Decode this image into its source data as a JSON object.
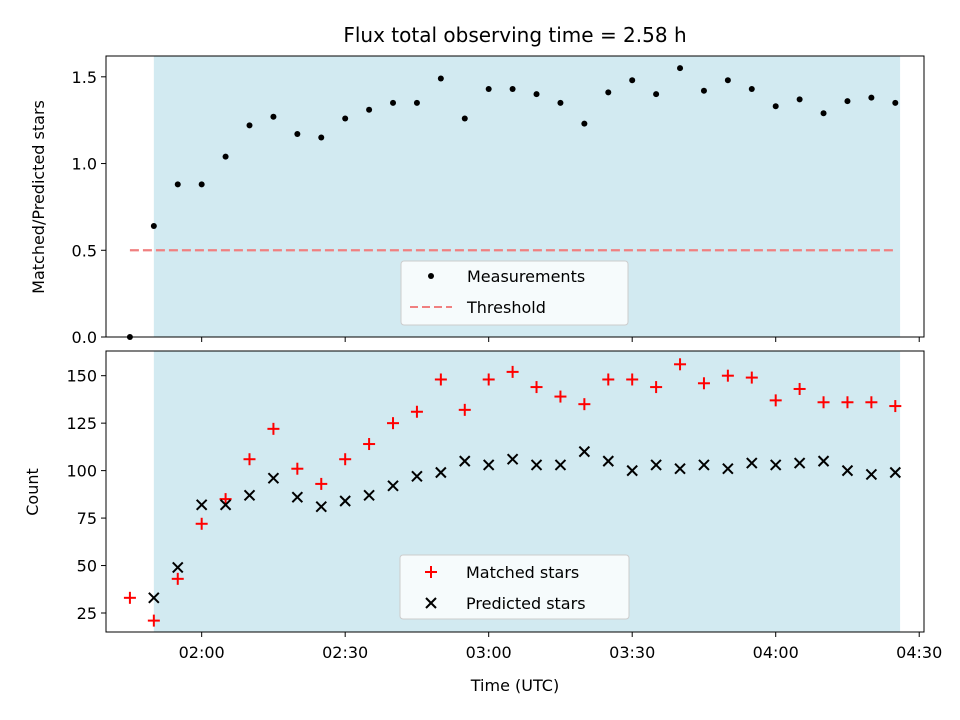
{
  "chart_data": [
    {
      "type": "scatter",
      "title": "Flux total observing time = 2.58 h",
      "xlabel": "",
      "ylabel": "Matched/Predicted stars",
      "ylim": [
        0,
        1.62
      ],
      "xlim": [
        "01:40",
        "04:31"
      ],
      "yticks": [
        0.0,
        0.5,
        1.0,
        1.5
      ],
      "ytick_labels": [
        "0.0",
        "0.5",
        "1.0",
        "1.5"
      ],
      "shaded_region": {
        "from": "01:50",
        "to": "04:26",
        "color": "#add8e6"
      },
      "legend_position": "lower center",
      "series": [
        {
          "name": "Measurements",
          "marker": "dot",
          "color": "#000000",
          "x": [
            "01:45",
            "01:50",
            "01:55",
            "02:00",
            "02:05",
            "02:10",
            "02:15",
            "02:20",
            "02:25",
            "02:30",
            "02:35",
            "02:40",
            "02:45",
            "02:50",
            "02:55",
            "03:00",
            "03:05",
            "03:10",
            "03:15",
            "03:20",
            "03:25",
            "03:30",
            "03:35",
            "03:40",
            "03:45",
            "03:50",
            "03:55",
            "04:00",
            "04:05",
            "04:10",
            "04:15",
            "04:20",
            "04:25"
          ],
          "y": [
            0.0,
            0.64,
            0.88,
            0.88,
            1.04,
            1.22,
            1.27,
            1.17,
            1.15,
            1.26,
            1.31,
            1.35,
            1.35,
            1.49,
            1.26,
            1.43,
            1.43,
            1.4,
            1.35,
            1.23,
            1.41,
            1.48,
            1.4,
            1.55,
            1.42,
            1.48,
            1.43,
            1.33,
            1.37,
            1.29,
            1.36,
            1.38,
            1.35
          ]
        },
        {
          "name": "Threshold",
          "marker": "dashed-line",
          "color": "#f08080",
          "x": [
            "01:45",
            "04:25"
          ],
          "y": [
            0.5,
            0.5
          ]
        }
      ]
    },
    {
      "type": "scatter",
      "title": "",
      "xlabel": "Time (UTC)",
      "ylabel": "Count",
      "ylim": [
        15,
        163
      ],
      "xlim": [
        "01:40",
        "04:31"
      ],
      "yticks": [
        25,
        50,
        75,
        100,
        125,
        150
      ],
      "ytick_labels": [
        "25",
        "50",
        "75",
        "100",
        "125",
        "150"
      ],
      "xticks": [
        "02:00",
        "02:30",
        "03:00",
        "03:30",
        "04:00",
        "04:30"
      ],
      "xtick_labels": [
        "02:00",
        "02:30",
        "03:00",
        "03:30",
        "04:00",
        "04:30"
      ],
      "shaded_region": {
        "from": "01:50",
        "to": "04:26",
        "color": "#add8e6"
      },
      "legend_position": "lower center",
      "series": [
        {
          "name": "Matched stars",
          "marker": "plus",
          "color": "#ff0000",
          "x": [
            "01:45",
            "01:50",
            "01:55",
            "02:00",
            "02:05",
            "02:10",
            "02:15",
            "02:20",
            "02:25",
            "02:30",
            "02:35",
            "02:40",
            "02:45",
            "02:50",
            "02:55",
            "03:00",
            "03:05",
            "03:10",
            "03:15",
            "03:20",
            "03:25",
            "03:30",
            "03:35",
            "03:40",
            "03:45",
            "03:50",
            "03:55",
            "04:00",
            "04:05",
            "04:10",
            "04:15",
            "04:20",
            "04:25"
          ],
          "y": [
            33,
            21,
            43,
            72,
            85,
            106,
            122,
            101,
            93,
            106,
            114,
            125,
            131,
            148,
            132,
            148,
            152,
            144,
            139,
            135,
            148,
            148,
            144,
            156,
            146,
            150,
            149,
            137,
            143,
            136,
            136,
            136,
            134
          ]
        },
        {
          "name": "Predicted stars",
          "marker": "x",
          "color": "#000000",
          "x": [
            "01:50",
            "01:55",
            "02:00",
            "02:05",
            "02:10",
            "02:15",
            "02:20",
            "02:25",
            "02:30",
            "02:35",
            "02:40",
            "02:45",
            "02:50",
            "02:55",
            "03:00",
            "03:05",
            "03:10",
            "03:15",
            "03:20",
            "03:25",
            "03:30",
            "03:35",
            "03:40",
            "03:45",
            "03:50",
            "03:55",
            "04:00",
            "04:05",
            "04:10",
            "04:15",
            "04:20",
            "04:25"
          ],
          "y": [
            33,
            49,
            82,
            82,
            87,
            96,
            86,
            81,
            84,
            87,
            92,
            97,
            99,
            105,
            103,
            106,
            103,
            103,
            110,
            105,
            100,
            103,
            101,
            103,
            101,
            104,
            103,
            104,
            105,
            100,
            98,
            99
          ]
        }
      ]
    }
  ]
}
